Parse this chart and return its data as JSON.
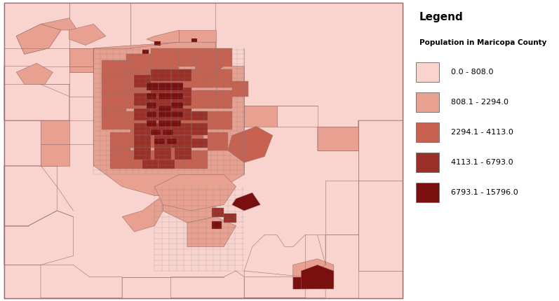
{
  "legend_title": "Legend",
  "legend_subtitle": "Population in Maricopa County",
  "legend_labels": [
    "0.0 - 808.0",
    "808.1 - 2294.0",
    "2294.1 - 4113.0",
    "4113.1 - 6793.0",
    "6793.1 - 15796.0"
  ],
  "legend_colors": [
    "#f9d4ce",
    "#e8a090",
    "#c8614f",
    "#9b3028",
    "#7a0f0f"
  ],
  "bg_color": "#f9d4ce",
  "border_color": "#9a7070",
  "grid_color": "#6a8888",
  "fig_width": 7.97,
  "fig_height": 4.3,
  "dpi": 100
}
